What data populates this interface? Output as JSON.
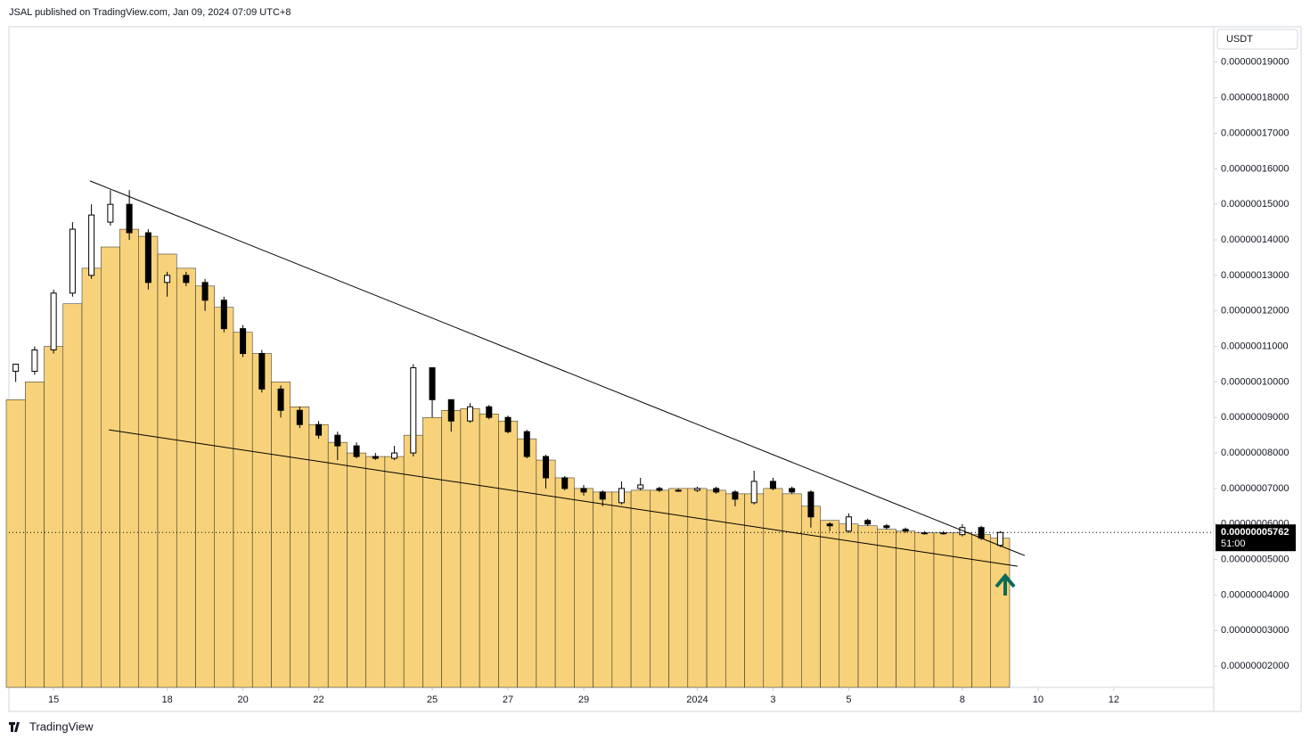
{
  "header": {
    "published": "JSAL published on TradingView.com, Jan 09, 2024 07:09 UTC+8",
    "currency": "USDT",
    "brand": "TradingView"
  },
  "chart_data": {
    "type": "candlestick",
    "x": [
      14,
      14.5,
      15,
      15.5,
      16,
      16.5,
      17,
      17.5,
      18,
      18.5,
      19,
      19.5,
      20,
      20.5,
      21,
      21.5,
      22,
      22.5,
      23,
      23.5,
      24,
      24.5,
      25,
      25.5,
      26,
      26.5,
      27,
      27.5,
      28,
      28.5,
      29,
      29.5,
      30,
      30.5,
      31,
      31.5,
      32,
      32.5,
      33,
      33.5,
      34,
      34.5,
      35,
      35.5,
      36,
      36.5,
      37,
      37.5,
      38,
      38.5,
      39,
      39.5,
      40
    ],
    "open": [
      1.03e-07,
      1.03e-07,
      1.09e-07,
      1.25e-07,
      1.3e-07,
      1.45e-07,
      1.5e-07,
      1.42e-07,
      1.28e-07,
      1.3e-07,
      1.28e-07,
      1.23e-07,
      1.15e-07,
      1.08e-07,
      9.8e-08,
      9.2e-08,
      8.8e-08,
      8.5e-08,
      8.2e-08,
      7.9e-08,
      7.85e-08,
      8e-08,
      1.04e-07,
      9.5e-08,
      8.9e-08,
      9.3e-08,
      9e-08,
      8.6e-08,
      7.9e-08,
      7.3e-08,
      7e-08,
      6.9e-08,
      6.6e-08,
      7e-08,
      7e-08,
      6.95e-08,
      6.95e-08,
      7e-08,
      6.9e-08,
      6.6e-08,
      7.2e-08,
      7e-08,
      6.9e-08,
      6e-08,
      5.8e-08,
      6.1e-08,
      5.95e-08,
      5.85e-08,
      5.75e-08,
      5.75e-08,
      5.7e-08,
      5.9e-08,
      5.4e-08
    ],
    "high": [
      1.05e-07,
      1.1e-07,
      1.26e-07,
      1.45e-07,
      1.5e-07,
      1.54e-07,
      1.54e-07,
      1.43e-07,
      1.31e-07,
      1.31e-07,
      1.29e-07,
      1.24e-07,
      1.16e-07,
      1.09e-07,
      9.9e-08,
      9.3e-08,
      8.9e-08,
      8.6e-08,
      8.3e-08,
      8e-08,
      8.2e-08,
      1.05e-07,
      1.04e-07,
      9.4e-08,
      9.4e-08,
      9.35e-08,
      9.05e-08,
      8.65e-08,
      7.95e-08,
      7.35e-08,
      7.1e-08,
      6.95e-08,
      7.2e-08,
      7.3e-08,
      7.05e-08,
      7e-08,
      7.05e-08,
      7.05e-08,
      6.95e-08,
      7.5e-08,
      7.3e-08,
      7.05e-08,
      6.95e-08,
      6.05e-08,
      6.3e-08,
      6.15e-08,
      6e-08,
      5.9e-08,
      5.8e-08,
      5.8e-08,
      6e-08,
      5.95e-08,
      5.8e-08
    ],
    "low": [
      1e-07,
      1.02e-07,
      1.08e-07,
      1.24e-07,
      1.29e-07,
      1.44e-07,
      1.4e-07,
      1.26e-07,
      1.24e-07,
      1.27e-07,
      1.2e-07,
      1.14e-07,
      1.07e-07,
      9.7e-08,
      9e-08,
      8.7e-08,
      8.4e-08,
      7.8e-08,
      7.85e-08,
      7.8e-08,
      7.8e-08,
      7.9e-08,
      9e-08,
      8.6e-08,
      8.85e-08,
      8.95e-08,
      8.55e-08,
      7.85e-08,
      7e-08,
      6.95e-08,
      6.8e-08,
      6.5e-08,
      6.55e-08,
      6.95e-08,
      6.9e-08,
      6.9e-08,
      6.9e-08,
      6.85e-08,
      6.5e-08,
      6.55e-08,
      6.95e-08,
      6.85e-08,
      5.9e-08,
      5.8e-08,
      5.75e-08,
      5.95e-08,
      5.85e-08,
      5.75e-08,
      5.7e-08,
      5.7e-08,
      5.65e-08,
      5.55e-08,
      5.35e-08
    ],
    "close": [
      1.05e-07,
      1.09e-07,
      1.25e-07,
      1.43e-07,
      1.47e-07,
      1.5e-07,
      1.42e-07,
      1.28e-07,
      1.3e-07,
      1.28e-07,
      1.23e-07,
      1.15e-07,
      1.08e-07,
      9.8e-08,
      9.2e-08,
      8.8e-08,
      8.5e-08,
      8.2e-08,
      7.9e-08,
      7.85e-08,
      8e-08,
      1.04e-07,
      9.5e-08,
      8.9e-08,
      9.3e-08,
      9e-08,
      8.6e-08,
      7.9e-08,
      7.3e-08,
      7e-08,
      6.9e-08,
      6.7e-08,
      7e-08,
      7.1e-08,
      6.95e-08,
      6.95e-08,
      7e-08,
      6.9e-08,
      6.7e-08,
      7.2e-08,
      7e-08,
      6.9e-08,
      6.2e-08,
      5.95e-08,
      6.2e-08,
      6e-08,
      5.9e-08,
      5.8e-08,
      5.75e-08,
      5.75e-08,
      5.9e-08,
      5.6e-08,
      5.762e-08
    ],
    "average": {
      "color": "#f7d27a",
      "values": [
        9.5e-08,
        1e-07,
        1.1e-07,
        1.22e-07,
        1.32e-07,
        1.38e-07,
        1.43e-07,
        1.41e-07,
        1.36e-07,
        1.32e-07,
        1.27e-07,
        1.21e-07,
        1.14e-07,
        1.08e-07,
        1e-07,
        9.3e-08,
        8.8e-08,
        8.3e-08,
        8e-08,
        7.9e-08,
        7.9e-08,
        8.5e-08,
        9e-08,
        9.2e-08,
        9.25e-08,
        9.1e-08,
        8.9e-08,
        8.4e-08,
        7.8e-08,
        7.3e-08,
        7e-08,
        6.9e-08,
        6.9e-08,
        6.95e-08,
        6.95e-08,
        7e-08,
        7e-08,
        6.95e-08,
        6.85e-08,
        6.85e-08,
        7e-08,
        6.85e-08,
        6.5e-08,
        6.1e-08,
        6e-08,
        5.95e-08,
        5.85e-08,
        5.8e-08,
        5.75e-08,
        5.75e-08,
        5.75e-08,
        5.7e-08,
        5.6e-08
      ]
    },
    "trendlines": [
      {
        "x": [
          15.96,
          40.65
        ],
        "y": [
          1.566e-07,
          5.11e-08
        ]
      },
      {
        "x": [
          16.46,
          40.46
        ],
        "y": [
          8.65e-08,
          4.81e-08
        ]
      }
    ],
    "last_price": {
      "value": 5.762e-08,
      "label": "0.00000005762",
      "countdown": "51:00"
    },
    "xlim": [
      13.82,
      45.64
    ],
    "xticks": [
      15,
      18,
      20,
      22,
      25,
      27,
      29,
      {
        "value": 32,
        "label": "2024"
      },
      {
        "value": 34,
        "label": "3"
      },
      {
        "value": 36,
        "label": "5"
      },
      {
        "value": 39,
        "label": "8"
      },
      {
        "value": 41,
        "label": "10"
      },
      {
        "value": 43,
        "label": "12"
      }
    ],
    "ylim": [
      1.4e-08,
      2e-07
    ],
    "yticks": [
      {
        "value": 2e-08,
        "label": "0.00000002000"
      },
      {
        "value": 3e-08,
        "label": "0.00000003000"
      },
      {
        "value": 4e-08,
        "label": "0.00000004000"
      },
      {
        "value": 5e-08,
        "label": "0.00000005000"
      },
      {
        "value": 6e-08,
        "label": "0.00000006000"
      },
      {
        "value": 7e-08,
        "label": "0.00000007000"
      },
      {
        "value": 8e-08,
        "label": "0.00000008000"
      },
      {
        "value": 9e-08,
        "label": "0.00000009000"
      },
      {
        "value": 1e-07,
        "label": "0.00000010000"
      },
      {
        "value": 1.1e-07,
        "label": "0.00000011000"
      },
      {
        "value": 1.2e-07,
        "label": "0.00000012000"
      },
      {
        "value": 1.3e-07,
        "label": "0.00000013000"
      },
      {
        "value": 1.4e-07,
        "label": "0.00000014000"
      },
      {
        "value": 1.5e-07,
        "label": "0.00000015000"
      },
      {
        "value": 1.6e-07,
        "label": "0.00000016000"
      },
      {
        "value": 1.7e-07,
        "label": "0.00000017000"
      },
      {
        "value": 1.8e-07,
        "label": "0.00000018000"
      },
      {
        "value": 1.9e-07,
        "label": "0.00000019000"
      }
    ]
  }
}
